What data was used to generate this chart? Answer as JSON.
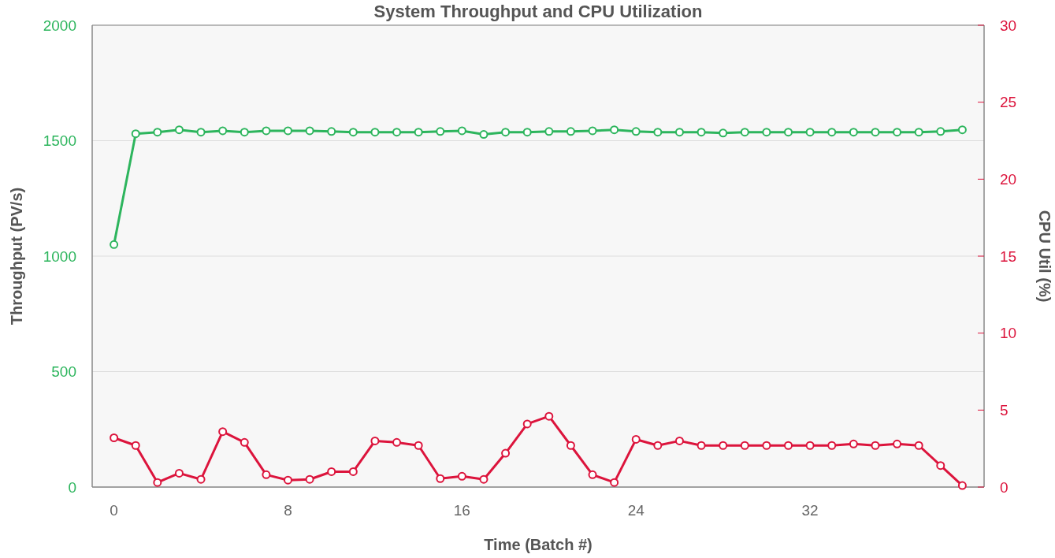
{
  "chart_data": {
    "type": "line",
    "title": "System Throughput and CPU Utilization",
    "xlabel": "Time (Batch #)",
    "ylabel": "Throughput (PV/s)",
    "y2label": "CPU Util (%)",
    "x": [
      0,
      1,
      2,
      3,
      4,
      5,
      6,
      7,
      8,
      9,
      10,
      11,
      12,
      13,
      14,
      15,
      16,
      17,
      18,
      19,
      20,
      21,
      22,
      23,
      24,
      25,
      26,
      27,
      28,
      29,
      30,
      31,
      32,
      33,
      34,
      35,
      36,
      37,
      38,
      39
    ],
    "series": [
      {
        "color": "#2db55d",
        "marker": "circle",
        "values": [
          1050,
          1530,
          1537,
          1547,
          1537,
          1543,
          1537,
          1543,
          1543,
          1543,
          1540,
          1537,
          1537,
          1537,
          1537,
          1540,
          1543,
          1527,
          1537,
          1537,
          1540,
          1540,
          1543,
          1547,
          1540,
          1537,
          1537,
          1537,
          1533,
          1537,
          1537,
          1537,
          1537,
          1537,
          1537,
          1537,
          1537,
          1537,
          1540,
          1547
        ]
      },
      {
        "color": "#dc143c",
        "marker": "circle",
        "axis": "y2",
        "values": [
          3.2,
          2.7,
          0.3,
          0.9,
          0.5,
          3.6,
          2.9,
          0.8,
          0.45,
          0.5,
          1.0,
          1.0,
          3.0,
          2.9,
          2.7,
          0.55,
          0.7,
          0.5,
          2.2,
          4.1,
          4.6,
          2.7,
          0.8,
          0.3,
          3.1,
          2.7,
          3.0,
          2.7,
          2.7,
          2.7,
          2.7,
          2.7,
          2.7,
          2.7,
          2.8,
          2.7,
          2.8,
          2.7,
          1.4,
          0.1
        ]
      }
    ],
    "xlim": [
      -1,
      40
    ],
    "xticks": [
      0,
      8,
      16,
      24,
      32
    ],
    "ylim": [
      0,
      2000
    ],
    "yticks": [
      0,
      500,
      1000,
      1500,
      2000
    ],
    "y2lim": [
      0,
      30
    ],
    "y2ticks": [
      0,
      5,
      10,
      15,
      20,
      25,
      30
    ],
    "grid": "y"
  }
}
